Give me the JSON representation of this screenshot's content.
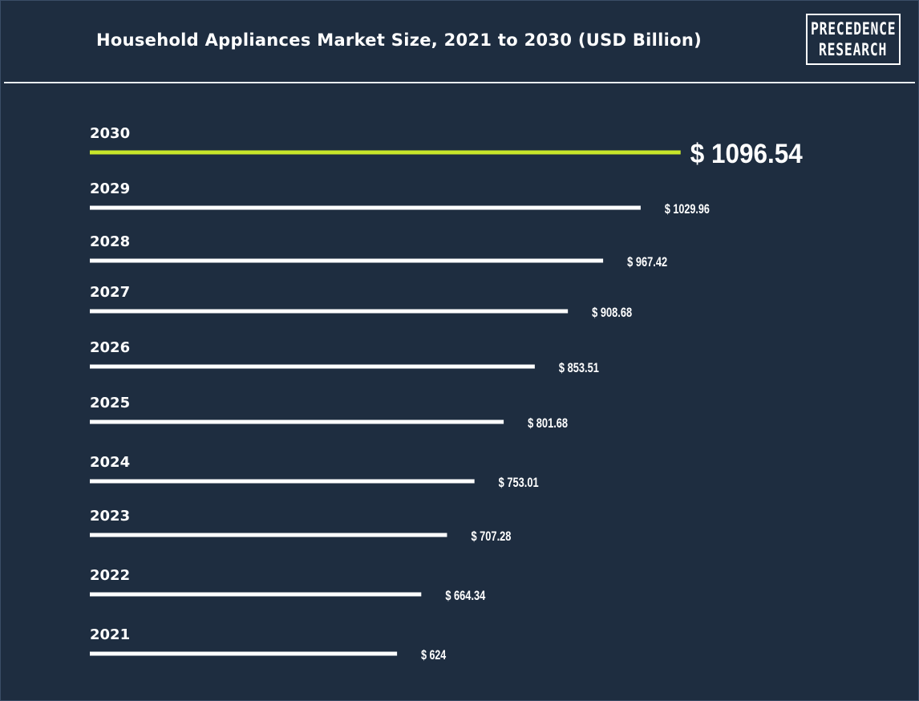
{
  "header": {
    "title": "Household Appliances Market Size, 2021 to 2030 (USD Billion)",
    "logo_line1": "PRECEDENCE",
    "logo_line2": "RESEARCH"
  },
  "colors": {
    "background": "#1e2d40",
    "bar": "#ffffff",
    "highlight_bar": "#c8e62a",
    "text": "#ffffff"
  },
  "chart_data": {
    "type": "bar",
    "orientation": "horizontal",
    "title": "Household Appliances Market Size, 2021 to 2030 (USD Billion)",
    "categories": [
      "2030",
      "2029",
      "2028",
      "2027",
      "2026",
      "2025",
      "2024",
      "2023",
      "2022",
      "2021"
    ],
    "values": [
      1096.54,
      1029.96,
      967.42,
      908.68,
      853.51,
      801.68,
      753.01,
      707.28,
      664.34,
      624
    ],
    "value_labels": [
      "$ 1096.54",
      "$ 1029.96",
      "$ 967.42",
      "$ 908.68",
      "$ 853.51",
      "$ 801.68",
      "$ 753.01",
      "$ 707.28",
      "$ 664.34",
      "$ 624"
    ],
    "highlight_category": "2030",
    "grid": false,
    "legend": "none"
  }
}
